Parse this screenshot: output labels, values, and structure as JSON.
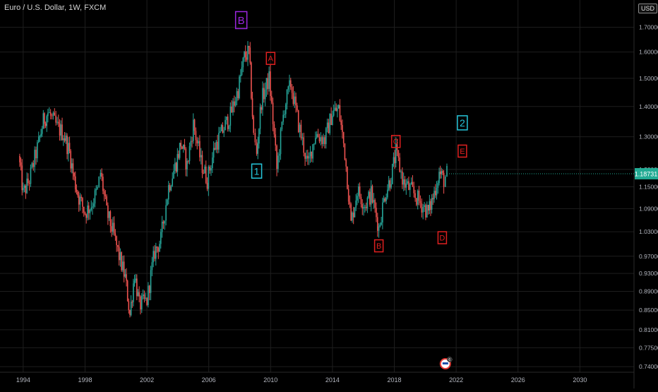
{
  "header": {
    "title": "Euro / U.S. Dollar, 1W, FXCM",
    "currency": "USD"
  },
  "price_badge": {
    "value": "1.18731",
    "color": "#22ab94"
  },
  "colors": {
    "up": "#26a69a",
    "down": "#ef5350",
    "grid": "#1e1e1e",
    "axis_text": "#b2b5be"
  },
  "chart_data": {
    "type": "candlestick",
    "title": "Euro / U.S. Dollar, 1W, FXCM",
    "xlabel": "",
    "ylabel": "",
    "x_ticks": [
      "1994",
      "1998",
      "2002",
      "2006",
      "2010",
      "2014",
      "2018",
      "2022",
      "2026",
      "2030"
    ],
    "y_ticks": [
      "1.70000",
      "1.60000",
      "1.50000",
      "1.40000",
      "1.30000",
      "1.20000",
      "1.15000",
      "1.09000",
      "1.03000",
      "0.97000",
      "0.93000",
      "0.89000",
      "0.85000",
      "0.81000",
      "0.77500",
      "0.74000"
    ],
    "ylim": [
      0.73,
      1.78
    ],
    "xlim": [
      1992.5,
      2033.5
    ],
    "log_scale": true,
    "grid": true,
    "last_price": 1.18731,
    "path_points": [
      [
        1993.7,
        1.24
      ],
      [
        1994.0,
        1.13
      ],
      [
        1994.4,
        1.17
      ],
      [
        1995.0,
        1.28
      ],
      [
        1995.3,
        1.35
      ],
      [
        1995.6,
        1.38
      ],
      [
        1996.2,
        1.33
      ],
      [
        1996.6,
        1.31
      ],
      [
        1997.0,
        1.25
      ],
      [
        1997.3,
        1.17
      ],
      [
        1997.6,
        1.12
      ],
      [
        1998.0,
        1.08
      ],
      [
        1998.4,
        1.1
      ],
      [
        1998.8,
        1.14
      ],
      [
        1999.0,
        1.19
      ],
      [
        1999.4,
        1.08
      ],
      [
        1999.8,
        1.03
      ],
      [
        2000.2,
        0.97
      ],
      [
        2000.6,
        0.92
      ],
      [
        2000.9,
        0.84
      ],
      [
        2001.2,
        0.93
      ],
      [
        2001.5,
        0.86
      ],
      [
        2002.0,
        0.87
      ],
      [
        2002.5,
        0.98
      ],
      [
        2002.9,
        1.01
      ],
      [
        2003.4,
        1.15
      ],
      [
        2003.9,
        1.22
      ],
      [
        2004.2,
        1.28
      ],
      [
        2004.6,
        1.21
      ],
      [
        2005.0,
        1.34
      ],
      [
        2005.5,
        1.22
      ],
      [
        2005.9,
        1.17
      ],
      [
        2006.4,
        1.27
      ],
      [
        2006.9,
        1.32
      ],
      [
        2007.4,
        1.37
      ],
      [
        2007.9,
        1.46
      ],
      [
        2008.3,
        1.58
      ],
      [
        2008.6,
        1.6
      ],
      [
        2008.9,
        1.3
      ],
      [
        2009.1,
        1.25
      ],
      [
        2009.4,
        1.42
      ],
      [
        2009.9,
        1.5
      ],
      [
        2010.4,
        1.2
      ],
      [
        2010.9,
        1.4
      ],
      [
        2011.3,
        1.48
      ],
      [
        2011.8,
        1.34
      ],
      [
        2012.4,
        1.21
      ],
      [
        2012.9,
        1.31
      ],
      [
        2013.5,
        1.29
      ],
      [
        2014.0,
        1.38
      ],
      [
        2014.4,
        1.39
      ],
      [
        2014.8,
        1.25
      ],
      [
        2015.2,
        1.05
      ],
      [
        2015.6,
        1.14
      ],
      [
        2016.1,
        1.1
      ],
      [
        2016.5,
        1.13
      ],
      [
        2017.0,
        1.04
      ],
      [
        2017.4,
        1.13
      ],
      [
        2017.8,
        1.18
      ],
      [
        2018.1,
        1.25
      ],
      [
        2018.6,
        1.16
      ],
      [
        2019.1,
        1.14
      ],
      [
        2019.6,
        1.11
      ],
      [
        2020.2,
        1.08
      ],
      [
        2020.5,
        1.12
      ],
      [
        2020.9,
        1.19
      ],
      [
        2021.2,
        1.17
      ],
      [
        2021.4,
        1.187
      ]
    ],
    "annotations": [
      {
        "label": "B",
        "x": 2008.1,
        "y": 1.73,
        "color": "#9c27e0",
        "size": "large"
      },
      {
        "label": "A",
        "x": 2010.0,
        "y": 1.575,
        "color": "#e02020",
        "size": "small"
      },
      {
        "label": "1",
        "x": 2009.1,
        "y": 1.195,
        "color": "#26c6da",
        "size": "medium"
      },
      {
        "label": "C",
        "x": 2018.1,
        "y": 1.285,
        "color": "#e02020",
        "size": "small"
      },
      {
        "label": "2",
        "x": 2022.4,
        "y": 1.345,
        "color": "#26c6da",
        "size": "medium"
      },
      {
        "label": "E",
        "x": 2022.4,
        "y": 1.255,
        "color": "#e02020",
        "size": "small"
      },
      {
        "label": "B",
        "x": 2017.0,
        "y": 0.995,
        "color": "#e02020",
        "size": "small"
      },
      {
        "label": "D",
        "x": 2021.1,
        "y": 1.015,
        "color": "#e02020",
        "size": "small"
      }
    ],
    "event_marker": {
      "x": 2021.3,
      "label": "6"
    }
  }
}
